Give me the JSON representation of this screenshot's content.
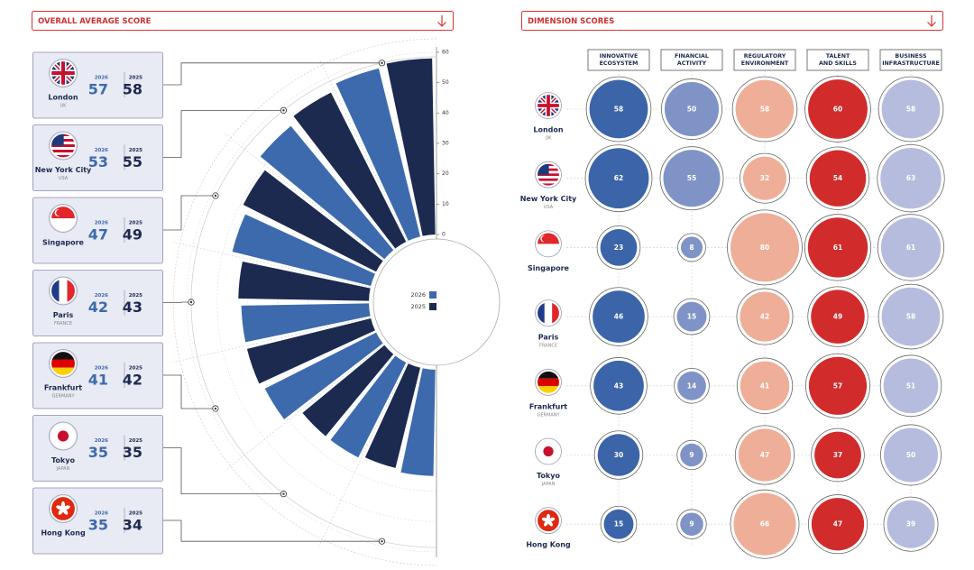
{
  "chart_data": [
    {
      "type": "radial_bar",
      "title": "OVERALL AVERAGE SCORE",
      "categories": [
        "London",
        "New York City",
        "Singapore",
        "Paris",
        "Frankfurt",
        "Tokyo",
        "Hong Kong"
      ],
      "countries": [
        "UK",
        "USA",
        null,
        "FRANCE",
        "GERMANY",
        "JAPAN",
        null
      ],
      "series": [
        {
          "name": "2026",
          "color": "#3d6aad",
          "values": [
            57,
            53,
            47,
            42,
            41,
            35,
            35
          ]
        },
        {
          "name": "2025",
          "color": "#1c2a4f",
          "values": [
            58,
            55,
            49,
            43,
            42,
            35,
            34
          ]
        }
      ],
      "ylim": [
        0,
        60
      ],
      "yticks": [
        0,
        10,
        20,
        30,
        40,
        50,
        60
      ],
      "grid": true,
      "legend": "center"
    },
    {
      "type": "bubble_grid",
      "title": "DIMENSION SCORES",
      "categories": [
        "London",
        "New York City",
        "Singapore",
        "Paris",
        "Frankfurt",
        "Tokyo",
        "Hong Kong"
      ],
      "countries": [
        "UK",
        "USA",
        null,
        "FRANCE",
        "GERMANY",
        "JAPAN",
        null
      ],
      "series": [
        {
          "name": "INNOVATIVE\nECOSYSTEM",
          "color": "#3b65a8",
          "values": [
            58,
            62,
            23,
            46,
            43,
            30,
            15
          ]
        },
        {
          "name": "FINANCIAL\nACTIVITY",
          "color": "#7f93c6",
          "values": [
            50,
            55,
            8,
            15,
            14,
            9,
            9
          ]
        },
        {
          "name": "REGULATORY\nENVIRONMENT",
          "color": "#efae98",
          "values": [
            58,
            32,
            80,
            42,
            41,
            47,
            66
          ]
        },
        {
          "name": "TALENT\nAND SKILLS",
          "color": "#d12b2b",
          "values": [
            60,
            54,
            61,
            49,
            57,
            37,
            47
          ]
        },
        {
          "name": "BUSINESS\nINFRASTRUCTURE",
          "color": "#b5bcdd",
          "values": [
            58,
            63,
            61,
            58,
            51,
            50,
            39
          ]
        }
      ]
    }
  ]
}
